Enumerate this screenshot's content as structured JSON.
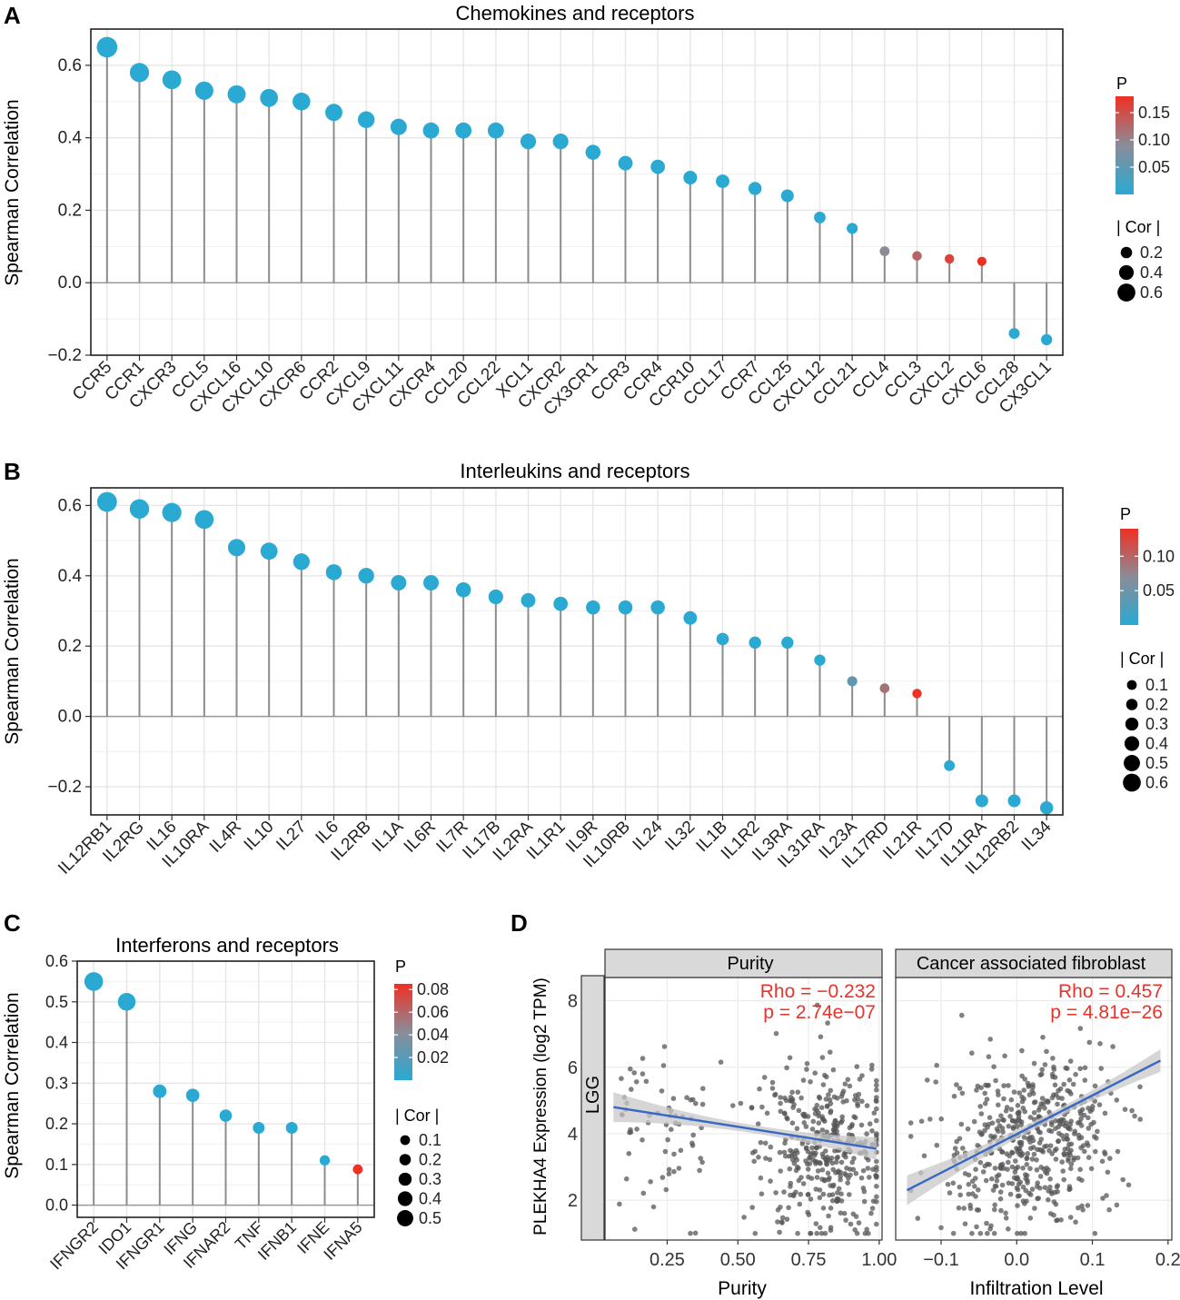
{
  "panel_labels": [
    "A",
    "B",
    "C",
    "D"
  ],
  "chart_data": [
    {
      "id": "A",
      "type": "lollipop",
      "title": "Chemokines and receptors",
      "ylabel": "Spearman Correlation",
      "ylim": [
        -0.2,
        0.7
      ],
      "yticks": [
        -0.2,
        0.0,
        0.2,
        0.4,
        0.6
      ],
      "ytick_labels": [
        "−0.2",
        "0.0",
        "0.2",
        "0.4",
        "0.6"
      ],
      "categories": [
        "CCR5",
        "CCR1",
        "CXCR3",
        "CCL5",
        "CXCL16",
        "CXCL10",
        "CXCR6",
        "CCR2",
        "CXCL9",
        "CXCL11",
        "CXCR4",
        "CCL20",
        "CCL22",
        "XCL1",
        "CXCR2",
        "CX3CR1",
        "CCR3",
        "CCR4",
        "CCR10",
        "CCL17",
        "CCR7",
        "CCL25",
        "CXCL12",
        "CCL21",
        "CCL4",
        "CCL3",
        "CXCL2",
        "CXCL6",
        "CCL28",
        "CX3CL1"
      ],
      "values": [
        0.65,
        0.58,
        0.56,
        0.53,
        0.52,
        0.51,
        0.5,
        0.47,
        0.45,
        0.43,
        0.42,
        0.42,
        0.42,
        0.39,
        0.39,
        0.36,
        0.33,
        0.32,
        0.29,
        0.28,
        0.26,
        0.24,
        0.18,
        0.15,
        0.087,
        0.074,
        0.066,
        0.059,
        -0.14,
        -0.157
      ],
      "p_values": [
        0,
        0,
        0,
        0,
        0,
        0,
        0,
        0,
        0,
        0,
        0,
        0,
        0,
        0,
        0,
        0,
        0,
        0,
        0,
        0,
        0,
        0,
        0,
        0,
        0.09,
        0.13,
        0.16,
        0.18,
        0,
        0
      ],
      "p_legend": {
        "title": "P",
        "max": 0.18,
        "ticks": [
          0.15,
          0.1,
          0.05
        ],
        "tick_labels": [
          "0.15",
          "0.10",
          "0.05"
        ]
      },
      "size_legend": {
        "title": "| Cor |",
        "values": [
          0.2,
          0.4,
          0.6
        ],
        "labels": [
          "0.2",
          "0.4",
          "0.6"
        ]
      }
    },
    {
      "id": "B",
      "type": "lollipop",
      "title": "Interleukins and receptors",
      "ylabel": "Spearman Correlation",
      "ylim": [
        -0.28,
        0.65
      ],
      "yticks": [
        -0.2,
        0.0,
        0.2,
        0.4,
        0.6
      ],
      "ytick_labels": [
        "−0.2",
        "0.0",
        "0.2",
        "0.4",
        "0.6"
      ],
      "categories": [
        "IL12RB1",
        "IL2RG",
        "IL16",
        "IL10RA",
        "IL4R",
        "IL10",
        "IL27",
        "IL6",
        "IL2RB",
        "IL1A",
        "IL6R",
        "IL7R",
        "IL17B",
        "IL2RA",
        "IL1R1",
        "IL9R",
        "IL10RB",
        "IL24",
        "IL32",
        "IL1B",
        "IL1R2",
        "IL3RA",
        "IL31RA",
        "IL23A",
        "IL17RD",
        "IL21R",
        "IL17D",
        "IL11RA",
        "IL12RB2",
        "IL34"
      ],
      "values": [
        0.61,
        0.59,
        0.58,
        0.56,
        0.48,
        0.47,
        0.44,
        0.41,
        0.4,
        0.38,
        0.38,
        0.36,
        0.34,
        0.33,
        0.32,
        0.31,
        0.31,
        0.31,
        0.28,
        0.22,
        0.21,
        0.21,
        0.16,
        0.1,
        0.08,
        0.065,
        -0.14,
        -0.24,
        -0.24,
        -0.26
      ],
      "p_values": [
        0,
        0,
        0,
        0,
        0,
        0,
        0,
        0,
        0,
        0,
        0,
        0,
        0,
        0,
        0,
        0,
        0,
        0,
        0,
        0,
        0,
        0,
        0,
        0.04,
        0.09,
        0.14,
        0,
        0,
        0,
        0
      ],
      "p_legend": {
        "title": "P",
        "max": 0.14,
        "ticks": [
          0.1,
          0.05
        ],
        "tick_labels": [
          "0.10",
          "0.05"
        ]
      },
      "size_legend": {
        "title": "| Cor |",
        "values": [
          0.1,
          0.2,
          0.3,
          0.4,
          0.5,
          0.6
        ],
        "labels": [
          "0.1",
          "0.2",
          "0.3",
          "0.4",
          "0.5",
          "0.6"
        ]
      }
    },
    {
      "id": "C",
      "type": "lollipop",
      "title": "Interferons and receptors",
      "ylabel": "Spearman Correlation",
      "ylim": [
        -0.03,
        0.6
      ],
      "yticks": [
        0.0,
        0.1,
        0.2,
        0.3,
        0.4,
        0.5,
        0.6
      ],
      "ytick_labels": [
        "0.0",
        "0.1",
        "0.2",
        "0.3",
        "0.4",
        "0.5",
        "0.6"
      ],
      "categories": [
        "IFNGR2",
        "IDO1",
        "IFNGR1",
        "IFNG",
        "IFNAR2",
        "TNF",
        "IFNB1",
        "IFNE",
        "IFNA5"
      ],
      "values": [
        0.55,
        0.5,
        0.28,
        0.27,
        0.22,
        0.19,
        0.19,
        0.11,
        0.088
      ],
      "p_values": [
        0,
        0,
        0,
        0,
        0,
        0,
        0,
        0,
        0.085
      ],
      "p_legend": {
        "title": "P",
        "max": 0.085,
        "ticks": [
          0.08,
          0.06,
          0.04,
          0.02
        ],
        "tick_labels": [
          "0.08",
          "0.06",
          "0.04",
          "0.02"
        ]
      },
      "size_legend": {
        "title": "| Cor |",
        "values": [
          0.1,
          0.2,
          0.3,
          0.4,
          0.5
        ],
        "labels": [
          "0.1",
          "0.2",
          "0.3",
          "0.4",
          "0.5"
        ]
      }
    },
    {
      "id": "D",
      "type": "scatter",
      "ylabel": "PLEKHA4 Expression (log2 TPM)",
      "row_strip": "LGG",
      "ylim": [
        0.8,
        8.7
      ],
      "yticks": [
        2,
        4,
        6,
        8
      ],
      "ytick_labels": [
        "2",
        "4",
        "6",
        "8"
      ],
      "facets": [
        {
          "strip": "Purity",
          "xlabel": "Purity",
          "xlim": [
            0.03,
            1.01
          ],
          "xticks": [
            0.25,
            0.5,
            0.75,
            1.0
          ],
          "xtick_labels": [
            "0.25",
            "0.50",
            "0.75",
            "1.00"
          ],
          "rho_text": "Rho = −0.232",
          "p_text": "p = 2.74e−07",
          "fit": {
            "x": [
              0.06,
              0.99
            ],
            "y": [
              4.8,
              3.55
            ]
          },
          "points": {
            "n": 470,
            "x_mean": 0.8,
            "x_sd": 0.12,
            "y_mean": 3.6,
            "y_sd": 1.3,
            "slope": -1.3,
            "x_range": [
              0.06,
              0.99
            ]
          }
        },
        {
          "strip": "Cancer associated fibroblast",
          "xlabel": "Infiltration Level",
          "xlim": [
            -0.16,
            0.205
          ],
          "xticks": [
            -0.1,
            0.0,
            0.1,
            0.2
          ],
          "xtick_labels": [
            "−0.1",
            "0.0",
            "0.1",
            "0.2"
          ],
          "rho_text": "Rho = 0.457",
          "p_text": "p = 4.81e−26",
          "fit": {
            "x": [
              -0.145,
              0.19
            ],
            "y": [
              2.3,
              6.2
            ]
          },
          "points": {
            "n": 520,
            "x_mean": 0.02,
            "x_sd": 0.06,
            "y_mean": 3.7,
            "y_sd": 1.25,
            "slope": 11.5,
            "x_range": [
              -0.14,
              0.19
            ]
          }
        }
      ],
      "colors": {
        "points": "#555555",
        "fit_line": "#3a66c4",
        "band": "#c8c8c8",
        "annotation": "#e8322a"
      }
    }
  ],
  "colors": {
    "p_low": "#2aa9d2",
    "p_high": "#f03023",
    "stem": "#8c8c8c",
    "grid": "#e6e6e6",
    "strip": "#d9d9d9"
  }
}
